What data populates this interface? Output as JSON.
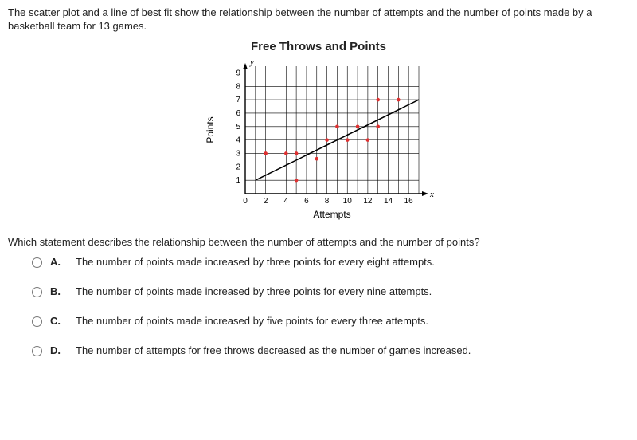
{
  "intro": "The scatter plot and a line of best fit show the relationship between the number of attempts and the number of points made by a basketball team for 13 games.",
  "chart": {
    "type": "scatter",
    "title": "Free Throws and Points",
    "xlabel": "Attempts",
    "ylabel": "Points",
    "axis_y_symbol": "y",
    "axis_x_symbol": "x",
    "xlim": [
      0,
      17
    ],
    "ylim": [
      0,
      9.5
    ],
    "xticks": [
      0,
      2,
      4,
      6,
      8,
      10,
      12,
      14,
      16
    ],
    "yticks": [
      1,
      2,
      3,
      4,
      5,
      6,
      7,
      8,
      9
    ],
    "grid_x": [
      1,
      2,
      3,
      4,
      5,
      6,
      7,
      8,
      9,
      10,
      11,
      12,
      13,
      14,
      15,
      16,
      17
    ],
    "grid_y": [
      1,
      2,
      3,
      4,
      5,
      6,
      7,
      8,
      9
    ],
    "grid_color": "#000000",
    "grid_stroke": 0.6,
    "axis_stroke": 1.4,
    "background_color": "#ffffff",
    "points": [
      {
        "x": 2,
        "y": 3
      },
      {
        "x": 4,
        "y": 3
      },
      {
        "x": 5,
        "y": 1
      },
      {
        "x": 5,
        "y": 3
      },
      {
        "x": 7,
        "y": 2.6
      },
      {
        "x": 8,
        "y": 4
      },
      {
        "x": 9,
        "y": 5
      },
      {
        "x": 10,
        "y": 4
      },
      {
        "x": 11,
        "y": 5
      },
      {
        "x": 12,
        "y": 4
      },
      {
        "x": 13,
        "y": 7
      },
      {
        "x": 13,
        "y": 5
      },
      {
        "x": 15,
        "y": 7
      }
    ],
    "point_color": "#e03030",
    "point_radius": 2.3,
    "line": {
      "x1": 1,
      "y1": 1,
      "x2": 17,
      "y2": 7,
      "stroke": "#000000",
      "width": 1.5
    },
    "label_fontsize": 12,
    "tick_fontsize": 10,
    "title_fontsize": 15
  },
  "question": "Which statement describes the relationship between the number of attempts and the number of points?",
  "options": [
    {
      "letter": "A.",
      "text": "The number of points made increased by three points for every eight attempts."
    },
    {
      "letter": "B.",
      "text": "The number of points made increased by three points for every nine attempts."
    },
    {
      "letter": "C.",
      "text": "The number of points made increased by five points for every three attempts."
    },
    {
      "letter": "D.",
      "text": "The number of attempts for free throws decreased as the number of games increased."
    }
  ]
}
